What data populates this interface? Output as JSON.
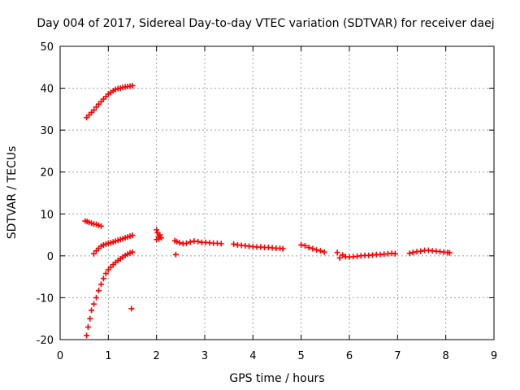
{
  "chart_data": {
    "type": "scatter",
    "title": "Day 004 of 2017, Sidereal Day-to-day VTEC variation (SDTVAR) for receiver daej",
    "xlabel": "GPS time / hours",
    "ylabel": "SDTVAR / TECUs",
    "xlim": [
      0,
      9
    ],
    "ylim": [
      -20,
      50
    ],
    "x_ticks": [
      "0",
      "1",
      "2",
      "3",
      "4",
      "5",
      "6",
      "7",
      "8",
      "9"
    ],
    "y_ticks": [
      "-20",
      "-10",
      "0",
      "10",
      "20",
      "30",
      "40",
      "50"
    ],
    "grid": true,
    "marker": "plus",
    "color": "#ff0000",
    "series": [
      {
        "points": [
          [
            0.55,
            33.0
          ],
          [
            0.6,
            33.6
          ],
          [
            0.65,
            34.2
          ],
          [
            0.7,
            34.8
          ],
          [
            0.75,
            35.5
          ],
          [
            0.8,
            36.2
          ],
          [
            0.85,
            36.8
          ],
          [
            0.9,
            37.4
          ],
          [
            0.95,
            38.0
          ],
          [
            1.0,
            38.6
          ],
          [
            1.05,
            39.0
          ],
          [
            1.1,
            39.4
          ],
          [
            1.15,
            39.7
          ],
          [
            1.2,
            39.9
          ],
          [
            1.25,
            40.0
          ],
          [
            1.3,
            40.2
          ],
          [
            1.35,
            40.3
          ],
          [
            1.4,
            40.4
          ],
          [
            1.45,
            40.5
          ],
          [
            1.5,
            40.6
          ],
          [
            0.52,
            8.3
          ],
          [
            0.56,
            8.2
          ],
          [
            0.6,
            8.0
          ],
          [
            0.65,
            7.8
          ],
          [
            0.7,
            7.6
          ],
          [
            0.75,
            7.5
          ],
          [
            0.8,
            7.3
          ],
          [
            0.85,
            7.1
          ],
          [
            0.7,
            0.5
          ],
          [
            0.75,
            1.2
          ],
          [
            0.8,
            1.8
          ],
          [
            0.85,
            2.3
          ],
          [
            0.9,
            2.6
          ],
          [
            0.95,
            2.8
          ],
          [
            1.0,
            3.0
          ],
          [
            1.05,
            3.1
          ],
          [
            1.1,
            3.3
          ],
          [
            1.15,
            3.5
          ],
          [
            1.2,
            3.7
          ],
          [
            1.25,
            3.9
          ],
          [
            1.3,
            4.1
          ],
          [
            1.35,
            4.3
          ],
          [
            1.4,
            4.5
          ],
          [
            1.45,
            4.7
          ],
          [
            1.5,
            4.9
          ],
          [
            0.55,
            -19.0
          ],
          [
            0.58,
            -17.0
          ],
          [
            0.62,
            -15.0
          ],
          [
            0.65,
            -13.0
          ],
          [
            0.7,
            -11.5
          ],
          [
            0.75,
            -10.0
          ],
          [
            0.8,
            -8.3
          ],
          [
            0.85,
            -6.8
          ],
          [
            0.9,
            -5.4
          ],
          [
            0.95,
            -4.2
          ],
          [
            1.0,
            -3.3
          ],
          [
            1.05,
            -2.7
          ],
          [
            1.1,
            -2.1
          ],
          [
            1.15,
            -1.6
          ],
          [
            1.2,
            -1.1
          ],
          [
            1.25,
            -0.7
          ],
          [
            1.3,
            -0.3
          ],
          [
            1.35,
            0.1
          ],
          [
            1.4,
            0.4
          ],
          [
            1.45,
            0.7
          ],
          [
            1.5,
            0.9
          ],
          [
            1.48,
            -12.6
          ],
          [
            2.0,
            6.2
          ],
          [
            2.02,
            5.5
          ],
          [
            2.04,
            4.6
          ],
          [
            2.05,
            4.0
          ],
          [
            2.07,
            5.0
          ],
          [
            2.1,
            4.3
          ],
          [
            2.0,
            3.9
          ],
          [
            2.4,
            0.3
          ],
          [
            2.38,
            3.6
          ],
          [
            2.42,
            3.4
          ],
          [
            2.48,
            3.1
          ],
          [
            2.55,
            2.9
          ],
          [
            2.62,
            3.0
          ],
          [
            2.7,
            3.3
          ],
          [
            2.78,
            3.5
          ],
          [
            2.86,
            3.4
          ],
          [
            2.94,
            3.2
          ],
          [
            3.02,
            3.2
          ],
          [
            3.1,
            3.1
          ],
          [
            3.18,
            3.0
          ],
          [
            3.26,
            3.0
          ],
          [
            3.34,
            2.9
          ],
          [
            3.6,
            2.8
          ],
          [
            3.68,
            2.6
          ],
          [
            3.76,
            2.5
          ],
          [
            3.84,
            2.4
          ],
          [
            3.92,
            2.3
          ],
          [
            4.0,
            2.2
          ],
          [
            4.08,
            2.1
          ],
          [
            4.16,
            2.1
          ],
          [
            4.24,
            2.0
          ],
          [
            4.32,
            2.0
          ],
          [
            4.4,
            1.9
          ],
          [
            4.48,
            1.8
          ],
          [
            4.56,
            1.8
          ],
          [
            4.62,
            1.7
          ],
          [
            5.0,
            2.6
          ],
          [
            5.08,
            2.4
          ],
          [
            5.16,
            2.0
          ],
          [
            5.24,
            1.7
          ],
          [
            5.32,
            1.4
          ],
          [
            5.4,
            1.2
          ],
          [
            5.48,
            0.9
          ],
          [
            5.75,
            0.8
          ],
          [
            5.8,
            -0.5
          ],
          [
            5.86,
            0.2
          ],
          [
            5.92,
            -0.2
          ],
          [
            6.0,
            -0.3
          ],
          [
            6.08,
            -0.2
          ],
          [
            6.16,
            -0.1
          ],
          [
            6.24,
            0.0
          ],
          [
            6.32,
            0.1
          ],
          [
            6.4,
            0.1
          ],
          [
            6.48,
            0.2
          ],
          [
            6.56,
            0.3
          ],
          [
            6.64,
            0.3
          ],
          [
            6.72,
            0.4
          ],
          [
            6.8,
            0.5
          ],
          [
            6.88,
            0.6
          ],
          [
            6.95,
            0.5
          ],
          [
            7.25,
            0.6
          ],
          [
            7.32,
            0.8
          ],
          [
            7.4,
            1.0
          ],
          [
            7.48,
            1.1
          ],
          [
            7.56,
            1.3
          ],
          [
            7.64,
            1.3
          ],
          [
            7.72,
            1.2
          ],
          [
            7.8,
            1.1
          ],
          [
            7.88,
            1.0
          ],
          [
            7.96,
            0.9
          ],
          [
            8.04,
            0.8
          ],
          [
            8.08,
            0.7
          ]
        ]
      }
    ]
  }
}
